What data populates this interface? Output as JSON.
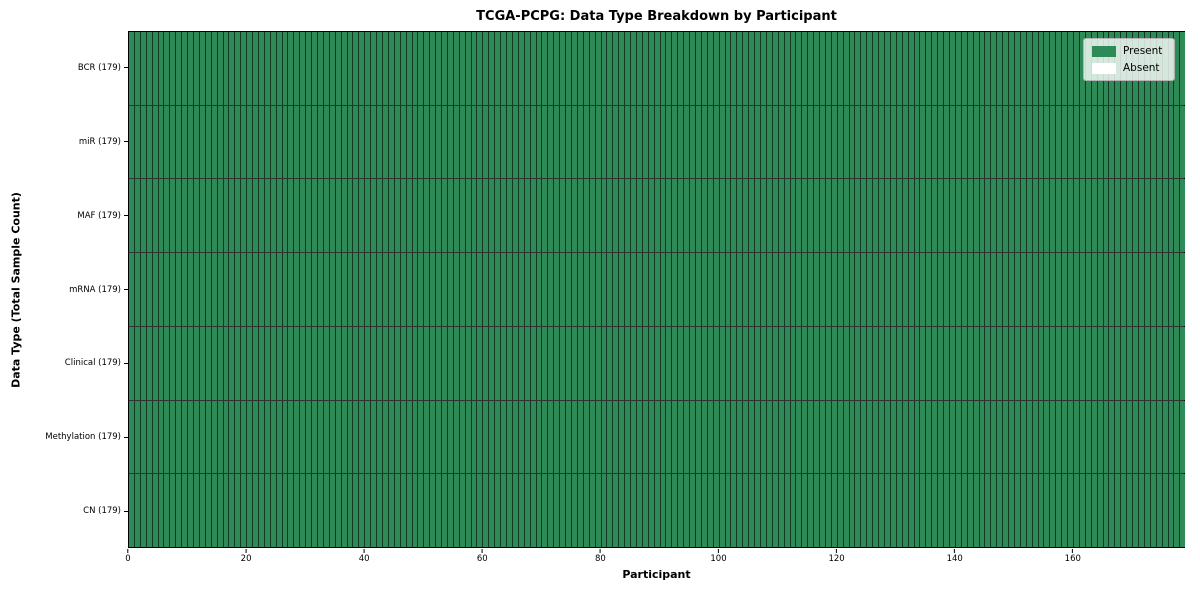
{
  "figure": {
    "background": "#ffffff"
  },
  "chart_data": {
    "type": "heatmap",
    "title": "TCGA-PCPG: Data Type Breakdown by Participant",
    "xlabel": "Participant",
    "ylabel": "Data Type (Total Sample Count)",
    "n_participants": 179,
    "x_range": [
      0,
      179
    ],
    "x_ticks": [
      0,
      20,
      40,
      60,
      80,
      100,
      120,
      140,
      160
    ],
    "rows": [
      {
        "label": "BCR (179)",
        "data_type": "BCR",
        "total_sample_count": 179,
        "present": 179,
        "absent": 0
      },
      {
        "label": "miR (179)",
        "data_type": "miR",
        "total_sample_count": 179,
        "present": 179,
        "absent": 0
      },
      {
        "label": "MAF (179)",
        "data_type": "MAF",
        "total_sample_count": 179,
        "present": 179,
        "absent": 0
      },
      {
        "label": "mRNA (179)",
        "data_type": "mRNA",
        "total_sample_count": 179,
        "present": 179,
        "absent": 0
      },
      {
        "label": "Clinical (179)",
        "data_type": "Clinical",
        "total_sample_count": 179,
        "present": 179,
        "absent": 0
      },
      {
        "label": "Methylation (179)",
        "data_type": "Methylation",
        "total_sample_count": 179,
        "present": 179,
        "absent": 0
      },
      {
        "label": "CN (179)",
        "data_type": "CN",
        "total_sample_count": 179,
        "present": 179,
        "absent": 0
      }
    ],
    "all_present": true,
    "legend": {
      "position": "upper-right",
      "entries": [
        {
          "label": "Present",
          "color": "#2e8b57"
        },
        {
          "label": "Absent",
          "color": "#ffffff"
        }
      ]
    },
    "colors": {
      "present": "#2e8b57",
      "absent": "#ffffff",
      "cell_edge": "#000000",
      "spine": "#000000"
    },
    "grid": true
  }
}
